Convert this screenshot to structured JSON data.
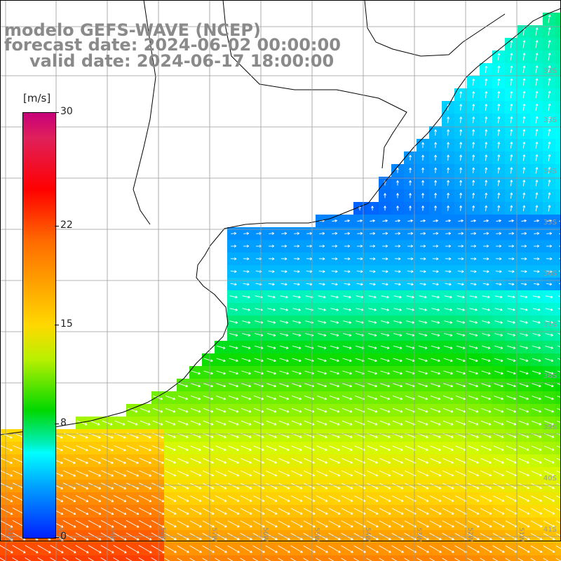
{
  "title": {
    "line1": "modelo GEFS-WAVE (NCEP)",
    "line2": "forecast date: 2024-06-02 00:00:00",
    "line3": "valid date: 2024-06-17 18:00:00"
  },
  "colorbar": {
    "unit": "[m/s]",
    "ticks": [
      {
        "label": "30",
        "value": 30
      },
      {
        "label": "22",
        "value": 22
      },
      {
        "label": "15",
        "value": 15
      },
      {
        "label": "8",
        "value": 8
      },
      {
        "label": "0",
        "value": 0
      }
    ]
  },
  "grid": {
    "lon_labels": [
      "61W",
      "60W",
      "59W",
      "58W",
      "57W",
      "56W",
      "55W",
      "54W",
      "53W",
      "52W",
      "51W"
    ],
    "lat_labels": [
      "32S",
      "33S",
      "34S",
      "35S",
      "36S",
      "37S",
      "38S",
      "39S",
      "40S",
      "41S"
    ]
  },
  "colors": {
    "land": "#ffffff",
    "grid_line": "#9a9a9a",
    "coastline": "#000000",
    "arrow": "#ffffff",
    "title_text": "#8a8a8a"
  }
}
